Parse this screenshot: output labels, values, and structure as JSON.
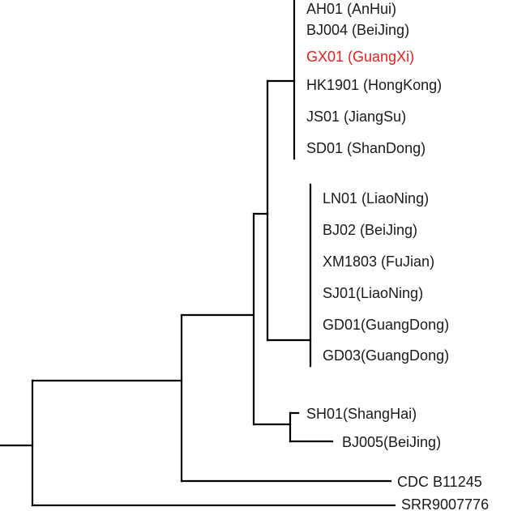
{
  "tree": {
    "leaves": [
      {
        "id": "ah01",
        "label": "AH01 (AnHui)",
        "color": "#1a1a1a"
      },
      {
        "id": "bj004",
        "label": "BJ004  (BeiJing)",
        "color": "#1a1a1a"
      },
      {
        "id": "gx01",
        "label": "GX01 (GuangXi)",
        "color": "#e02020",
        "highlighted": true
      },
      {
        "id": "hk1901",
        "label": "HK1901 (HongKong)",
        "color": "#1a1a1a"
      },
      {
        "id": "js01",
        "label": "JS01 (JiangSu)",
        "color": "#1a1a1a"
      },
      {
        "id": "sd01",
        "label": "SD01 (ShanDong)",
        "color": "#1a1a1a"
      },
      {
        "id": "ln01",
        "label": "LN01 (LiaoNing)",
        "color": "#1a1a1a"
      },
      {
        "id": "bj02",
        "label": "BJ02 (BeiJing)",
        "color": "#1a1a1a"
      },
      {
        "id": "xm1803",
        "label": "XM1803  (FuJian)",
        "color": "#1a1a1a"
      },
      {
        "id": "sj01",
        "label": "SJ01(LiaoNing)",
        "color": "#1a1a1a"
      },
      {
        "id": "gd01",
        "label": "GD01(GuangDong)",
        "color": "#1a1a1a"
      },
      {
        "id": "gd03",
        "label": "GD03(GuangDong)",
        "color": "#1a1a1a"
      },
      {
        "id": "sh01",
        "label": "SH01(ShangHai)",
        "color": "#1a1a1a"
      },
      {
        "id": "bj005",
        "label": "BJ005(BeiJing)",
        "color": "#1a1a1a"
      },
      {
        "id": "cdc",
        "label": "CDC B11245",
        "color": "#1a1a1a"
      },
      {
        "id": "srr",
        "label": "SRR9007776",
        "color": "#1a1a1a"
      }
    ]
  }
}
